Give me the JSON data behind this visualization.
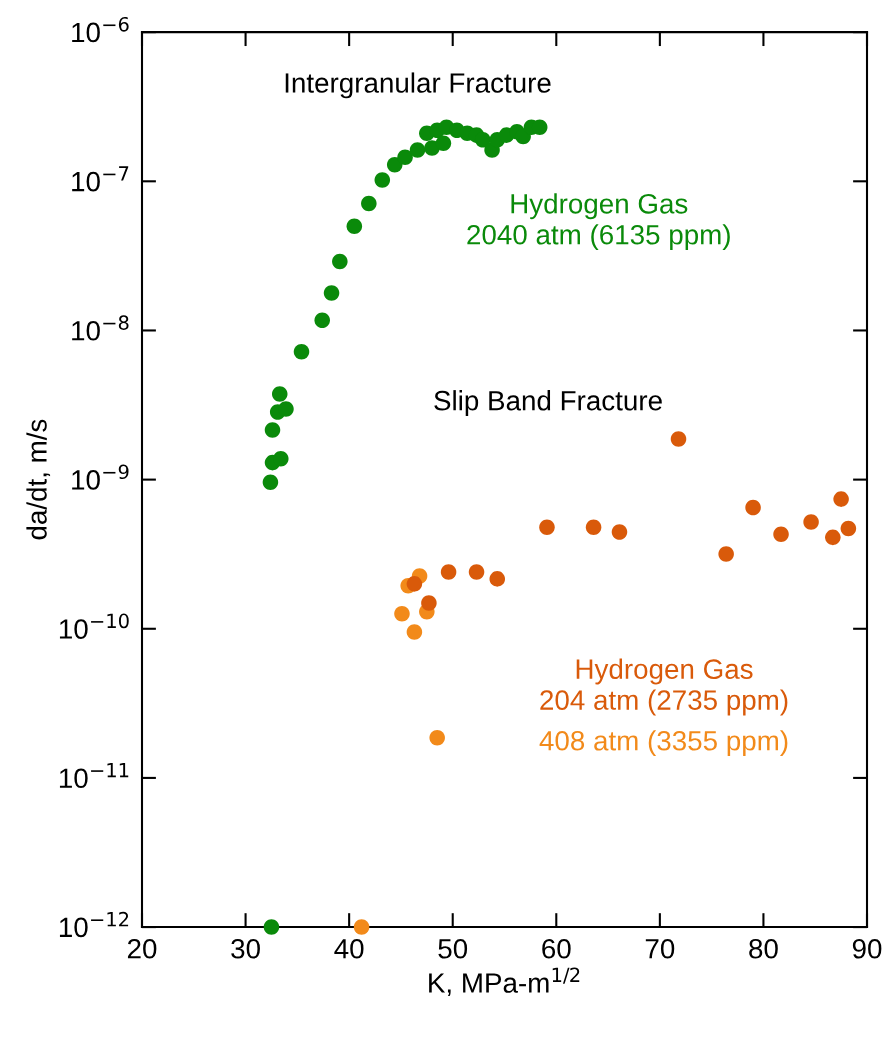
{
  "chart_data": {
    "type": "scatter",
    "xlabel": "K, MPa-m$^{1/2}$",
    "ylabel": "da/dt, m/s",
    "log": "y",
    "grid": false,
    "legend": false,
    "marker": "circle",
    "xlim": [
      20,
      90
    ],
    "xticks": [
      20,
      30,
      40,
      50,
      60,
      70,
      80,
      90
    ],
    "ylim": [
      1e-12,
      1e-06
    ],
    "yticks": [
      {
        "value": 1e-12,
        "label": "10$^{−12}$"
      },
      {
        "value": 1e-11,
        "label": "10$^{−11}$"
      },
      {
        "value": 1e-10,
        "label": "10$^{−10}$"
      },
      {
        "value": 1e-09,
        "label": "10$^{−9}$"
      },
      {
        "value": 1e-08,
        "label": "10$^{−8}$"
      },
      {
        "value": 1e-07,
        "label": "10$^{−7}$"
      },
      {
        "value": 1e-06,
        "label": "10$^{−6}$"
      }
    ],
    "annotations": [
      "Intergranular Fracture",
      "Slip Band Fracture"
    ],
    "series": [
      {
        "name": "Hydrogen Gas\n2040 atm (6135 ppm)",
        "color": "#0a8a0a",
        "x": [
          32.5,
          32.4,
          32.6,
          33.4,
          32.6,
          33.1,
          33.9,
          33.3,
          35.4,
          37.4,
          38.3,
          39.1,
          40.5,
          41.9,
          43.2,
          44.4,
          45.4,
          46.6,
          47.5,
          48.0,
          48.5,
          49.1,
          49.4,
          50.4,
          51.4,
          52.3,
          52.9,
          53.8,
          54.3,
          55.2,
          56.2,
          56.8,
          57.6,
          58.4
        ],
        "values": [
          1e-12,
          9.6e-10,
          1.3e-09,
          1.38e-09,
          2.15e-09,
          2.84e-09,
          2.97e-09,
          3.75e-09,
          7.2e-09,
          1.17e-08,
          1.78e-08,
          2.9e-08,
          5e-08,
          7.1e-08,
          1.02e-07,
          1.29e-07,
          1.45e-07,
          1.62e-07,
          2.1e-07,
          1.67e-07,
          2.2e-07,
          1.8e-07,
          2.3e-07,
          2.2e-07,
          2.1e-07,
          2.04e-07,
          1.9e-07,
          1.62e-07,
          1.9e-07,
          2.04e-07,
          2.15e-07,
          2e-07,
          2.3e-07,
          2.3e-07
        ]
      },
      {
        "name": "Hydrogen Gas\n204 atm (2735 ppm)",
        "color": "#d95a0a",
        "x": [
          46.3,
          47.7,
          49.6,
          52.3,
          54.3,
          59.1,
          63.6,
          66.1,
          71.8,
          76.4,
          79.0,
          81.7,
          84.6,
          86.7,
          87.5,
          88.2
        ],
        "values": [
          2e-10,
          1.49e-10,
          2.4e-10,
          2.4e-10,
          2.16e-10,
          4.8e-10,
          4.8e-10,
          4.46e-10,
          1.87e-09,
          3.17e-10,
          6.5e-10,
          4.3e-10,
          5.2e-10,
          4.1e-10,
          7.4e-10,
          4.7e-10
        ]
      },
      {
        "name": "408 atm (3355 ppm)",
        "color": "#f28a1a",
        "x": [
          41.2,
          45.1,
          45.7,
          46.3,
          46.8,
          47.5,
          48.5
        ],
        "values": [
          1e-12,
          1.26e-10,
          1.94e-10,
          9.5e-11,
          2.26e-10,
          1.3e-10,
          1.86e-11
        ]
      }
    ]
  }
}
